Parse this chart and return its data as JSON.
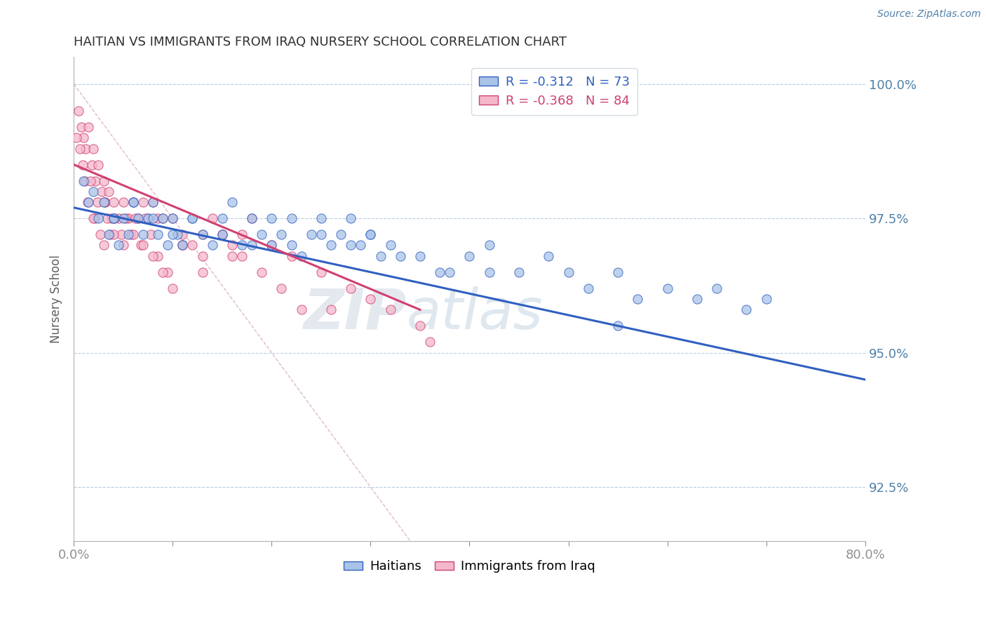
{
  "title": "HAITIAN VS IMMIGRANTS FROM IRAQ NURSERY SCHOOL CORRELATION CHART",
  "source": "Source: ZipAtlas.com",
  "ylabel": "Nursery School",
  "xlim": [
    0.0,
    80.0
  ],
  "ylim": [
    91.5,
    100.5
  ],
  "blue_R": -0.312,
  "blue_N": 73,
  "pink_R": -0.368,
  "pink_N": 84,
  "blue_color": "#aac4e8",
  "blue_line_color": "#3060c0",
  "blue_edge_color": "#3060c0",
  "pink_color": "#f5b8cb",
  "pink_line_color": "#d04070",
  "pink_edge_color": "#d04070",
  "ref_line_color": "#d0a0a8",
  "grid_color": "#b8cce0",
  "axis_color": "#5080a8",
  "title_color": "#303030",
  "blue_scatter_x": [
    1.0,
    1.5,
    2.0,
    2.5,
    3.0,
    3.5,
    4.0,
    4.5,
    5.0,
    5.5,
    6.0,
    6.5,
    7.0,
    7.5,
    8.0,
    8.5,
    9.0,
    9.5,
    10.0,
    10.5,
    11.0,
    12.0,
    13.0,
    14.0,
    15.0,
    16.0,
    17.0,
    18.0,
    19.0,
    20.0,
    21.0,
    22.0,
    23.0,
    24.0,
    25.0,
    26.0,
    27.0,
    28.0,
    29.0,
    30.0,
    31.0,
    32.0,
    35.0,
    38.0,
    40.0,
    42.0,
    45.0,
    48.0,
    50.0,
    52.0,
    55.0,
    57.0,
    60.0,
    63.0,
    65.0,
    68.0,
    70.0,
    4.0,
    6.0,
    8.0,
    10.0,
    12.0,
    15.0,
    18.0,
    20.0,
    22.0,
    25.0,
    28.0,
    30.0,
    33.0,
    37.0,
    42.0,
    55.0
  ],
  "blue_scatter_y": [
    98.2,
    97.8,
    98.0,
    97.5,
    97.8,
    97.2,
    97.5,
    97.0,
    97.5,
    97.2,
    97.8,
    97.5,
    97.2,
    97.5,
    97.8,
    97.2,
    97.5,
    97.0,
    97.5,
    97.2,
    97.0,
    97.5,
    97.2,
    97.0,
    97.5,
    97.8,
    97.0,
    97.5,
    97.2,
    97.0,
    97.2,
    97.5,
    96.8,
    97.2,
    97.5,
    97.0,
    97.2,
    97.5,
    97.0,
    97.2,
    96.8,
    97.0,
    96.8,
    96.5,
    96.8,
    97.0,
    96.5,
    96.8,
    96.5,
    96.2,
    96.5,
    96.0,
    96.2,
    96.0,
    96.2,
    95.8,
    96.0,
    97.5,
    97.8,
    97.5,
    97.2,
    97.5,
    97.2,
    97.0,
    97.5,
    97.0,
    97.2,
    97.0,
    97.2,
    96.8,
    96.5,
    96.5,
    95.5
  ],
  "pink_scatter_x": [
    0.5,
    0.8,
    1.0,
    1.2,
    1.5,
    1.8,
    2.0,
    2.2,
    2.5,
    2.8,
    3.0,
    3.2,
    3.5,
    3.8,
    4.0,
    4.5,
    5.0,
    5.5,
    6.0,
    6.5,
    7.0,
    7.5,
    8.0,
    8.5,
    9.0,
    10.0,
    11.0,
    12.0,
    13.0,
    14.0,
    15.0,
    16.0,
    17.0,
    18.0,
    20.0,
    22.0,
    25.0,
    28.0,
    30.0,
    32.0,
    35.0,
    0.3,
    0.6,
    0.9,
    1.1,
    1.4,
    1.7,
    2.1,
    2.4,
    2.7,
    3.1,
    3.4,
    3.7,
    4.1,
    4.8,
    5.2,
    5.8,
    6.2,
    6.8,
    7.2,
    7.8,
    8.5,
    9.5,
    11.0,
    13.0,
    15.0,
    17.0,
    19.0,
    21.0,
    23.0,
    2.0,
    3.0,
    4.0,
    5.0,
    6.0,
    7.0,
    8.0,
    9.0,
    10.0,
    11.0,
    13.0,
    16.0,
    26.0,
    36.0
  ],
  "pink_scatter_y": [
    99.5,
    99.2,
    99.0,
    98.8,
    99.2,
    98.5,
    98.8,
    98.2,
    98.5,
    98.0,
    98.2,
    97.8,
    98.0,
    97.5,
    97.8,
    97.5,
    97.8,
    97.5,
    97.8,
    97.5,
    97.8,
    97.5,
    97.8,
    97.5,
    97.5,
    97.5,
    97.2,
    97.0,
    97.2,
    97.5,
    97.2,
    97.0,
    97.2,
    97.5,
    97.0,
    96.8,
    96.5,
    96.2,
    96.0,
    95.8,
    95.5,
    99.0,
    98.8,
    98.5,
    98.2,
    97.8,
    98.2,
    97.5,
    97.8,
    97.2,
    97.8,
    97.5,
    97.2,
    97.5,
    97.2,
    97.5,
    97.2,
    97.5,
    97.0,
    97.5,
    97.2,
    96.8,
    96.5,
    97.0,
    96.8,
    97.2,
    96.8,
    96.5,
    96.2,
    95.8,
    97.5,
    97.0,
    97.2,
    97.0,
    97.2,
    97.0,
    96.8,
    96.5,
    96.2,
    97.0,
    96.5,
    96.8,
    95.8,
    95.2
  ],
  "blue_line_x": [
    0.0,
    80.0
  ],
  "blue_line_y": [
    97.7,
    94.5
  ],
  "pink_line_x": [
    0.0,
    35.0
  ],
  "pink_line_y": [
    98.5,
    95.8
  ],
  "ref_line_x": [
    0.0,
    80.0
  ],
  "ref_line_y": [
    100.0,
    80.0
  ],
  "ytick_positions": [
    92.5,
    95.0,
    97.5,
    100.0
  ],
  "ytick_labels": [
    "92.5%",
    "95.0%",
    "97.5%",
    "100.0%"
  ],
  "xtick_positions": [
    0.0,
    10.0,
    20.0,
    30.0,
    40.0,
    50.0,
    60.0,
    70.0,
    80.0
  ],
  "watermark_zip": "ZIP",
  "watermark_atlas": "atlas",
  "figsize": [
    14.06,
    8.92
  ],
  "dpi": 100
}
